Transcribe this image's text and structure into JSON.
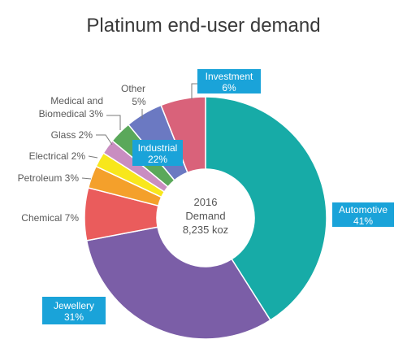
{
  "chart_data": {
    "type": "pie",
    "title": "Platinum end-user demand",
    "center": {
      "line1": "2016",
      "line2": "Demand",
      "line3": "8,235 koz"
    },
    "slices": [
      {
        "label": "Automotive",
        "value": 41,
        "value_text": "41%",
        "color": "#17aba7"
      },
      {
        "label": "Jewellery",
        "value": 31,
        "value_text": "31%",
        "color": "#7b5ea7"
      },
      {
        "label": "Chemical",
        "value": 7,
        "value_text": "Chemical 7%",
        "color": "#ea5c5c"
      },
      {
        "label": "Petroleum",
        "value": 3,
        "value_text": "Petroleum 3%",
        "color": "#f4a02b"
      },
      {
        "label": "Electrical",
        "value": 2,
        "value_text": "Electrical 2%",
        "color": "#f8e71c"
      },
      {
        "label": "Glass",
        "value": 2,
        "value_text": "Glass 2%",
        "color": "#c98dc1"
      },
      {
        "label": "Medical and Biomedical",
        "value": 3,
        "value_text": "Biomedical 3%",
        "value_text_line1": "Medical and",
        "color": "#5aa85a"
      },
      {
        "label": "Other",
        "value": 5,
        "value_text": "5%",
        "color": "#6b79c2"
      },
      {
        "label": "Investment",
        "value": 6,
        "value_text": "6%",
        "color": "#d9627a"
      }
    ],
    "industrial_bracket": {
      "label": "Industrial",
      "value_text": "22%",
      "color": "#3aa8d8"
    },
    "label_box_color": "#1aa3d9"
  }
}
